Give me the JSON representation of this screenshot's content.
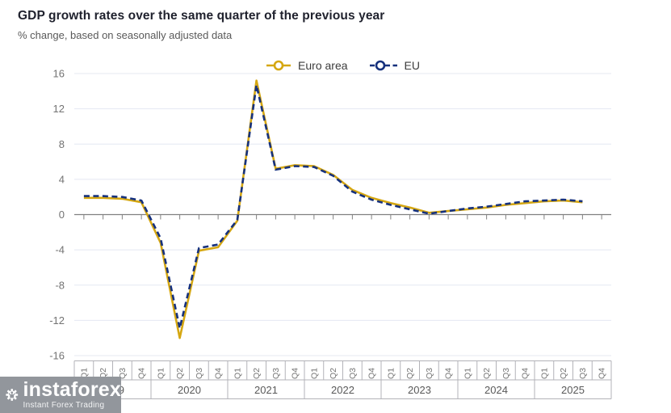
{
  "header": {
    "title": "GDP growth rates over the same quarter of the previous year",
    "subtitle": "% change, based on seasonally adjusted data"
  },
  "legend": {
    "items": [
      {
        "label": "Euro area",
        "color": "#d5a712",
        "style": "solid"
      },
      {
        "label": "EU",
        "color": "#16317d",
        "style": "dashed"
      }
    ]
  },
  "watermark": {
    "brand": "instaforex",
    "tagline": "Instant Forex Trading",
    "background": "#92969c"
  },
  "chart_data": {
    "type": "line",
    "title": "GDP growth rates over the same quarter of the previous year",
    "subtitle": "% change, based on seasonally adjusted data",
    "ylabel": "% change",
    "ylim": [
      -16,
      16
    ],
    "yticks": [
      16,
      12,
      8,
      4,
      0,
      -4,
      -8,
      -12,
      -16
    ],
    "grid": true,
    "legend_position": "top-center",
    "years": [
      "2019",
      "2020",
      "2021",
      "2022",
      "2023",
      "2024",
      "2025"
    ],
    "quarters": [
      "Q1",
      "Q2",
      "Q3",
      "Q4"
    ],
    "colors": {
      "grid": "#e4e8f2",
      "zero_axis": "#808080",
      "band_border": "#b3b3b8",
      "tick_label": "#737373",
      "year_label": "#595959"
    },
    "series": [
      {
        "name": "Euro area",
        "color": "#d5a712",
        "style": "solid",
        "values": [
          1.9,
          1.9,
          1.8,
          1.4,
          -3.2,
          -14.0,
          -4.1,
          -3.7,
          -0.7,
          15.2,
          5.2,
          5.6,
          5.5,
          4.5,
          2.8,
          1.9,
          1.3,
          0.8,
          0.2,
          0.4,
          0.6,
          0.8,
          1.1,
          1.3,
          1.5,
          1.6,
          1.4,
          null
        ]
      },
      {
        "name": "EU",
        "color": "#16317d",
        "style": "dashed",
        "values": [
          2.1,
          2.1,
          2.0,
          1.6,
          -2.7,
          -12.9,
          -3.8,
          -3.4,
          -0.6,
          14.7,
          5.1,
          5.5,
          5.4,
          4.4,
          2.6,
          1.7,
          1.1,
          0.6,
          0.1,
          0.4,
          0.7,
          0.9,
          1.2,
          1.5,
          1.6,
          1.7,
          1.5,
          null
        ]
      }
    ]
  }
}
